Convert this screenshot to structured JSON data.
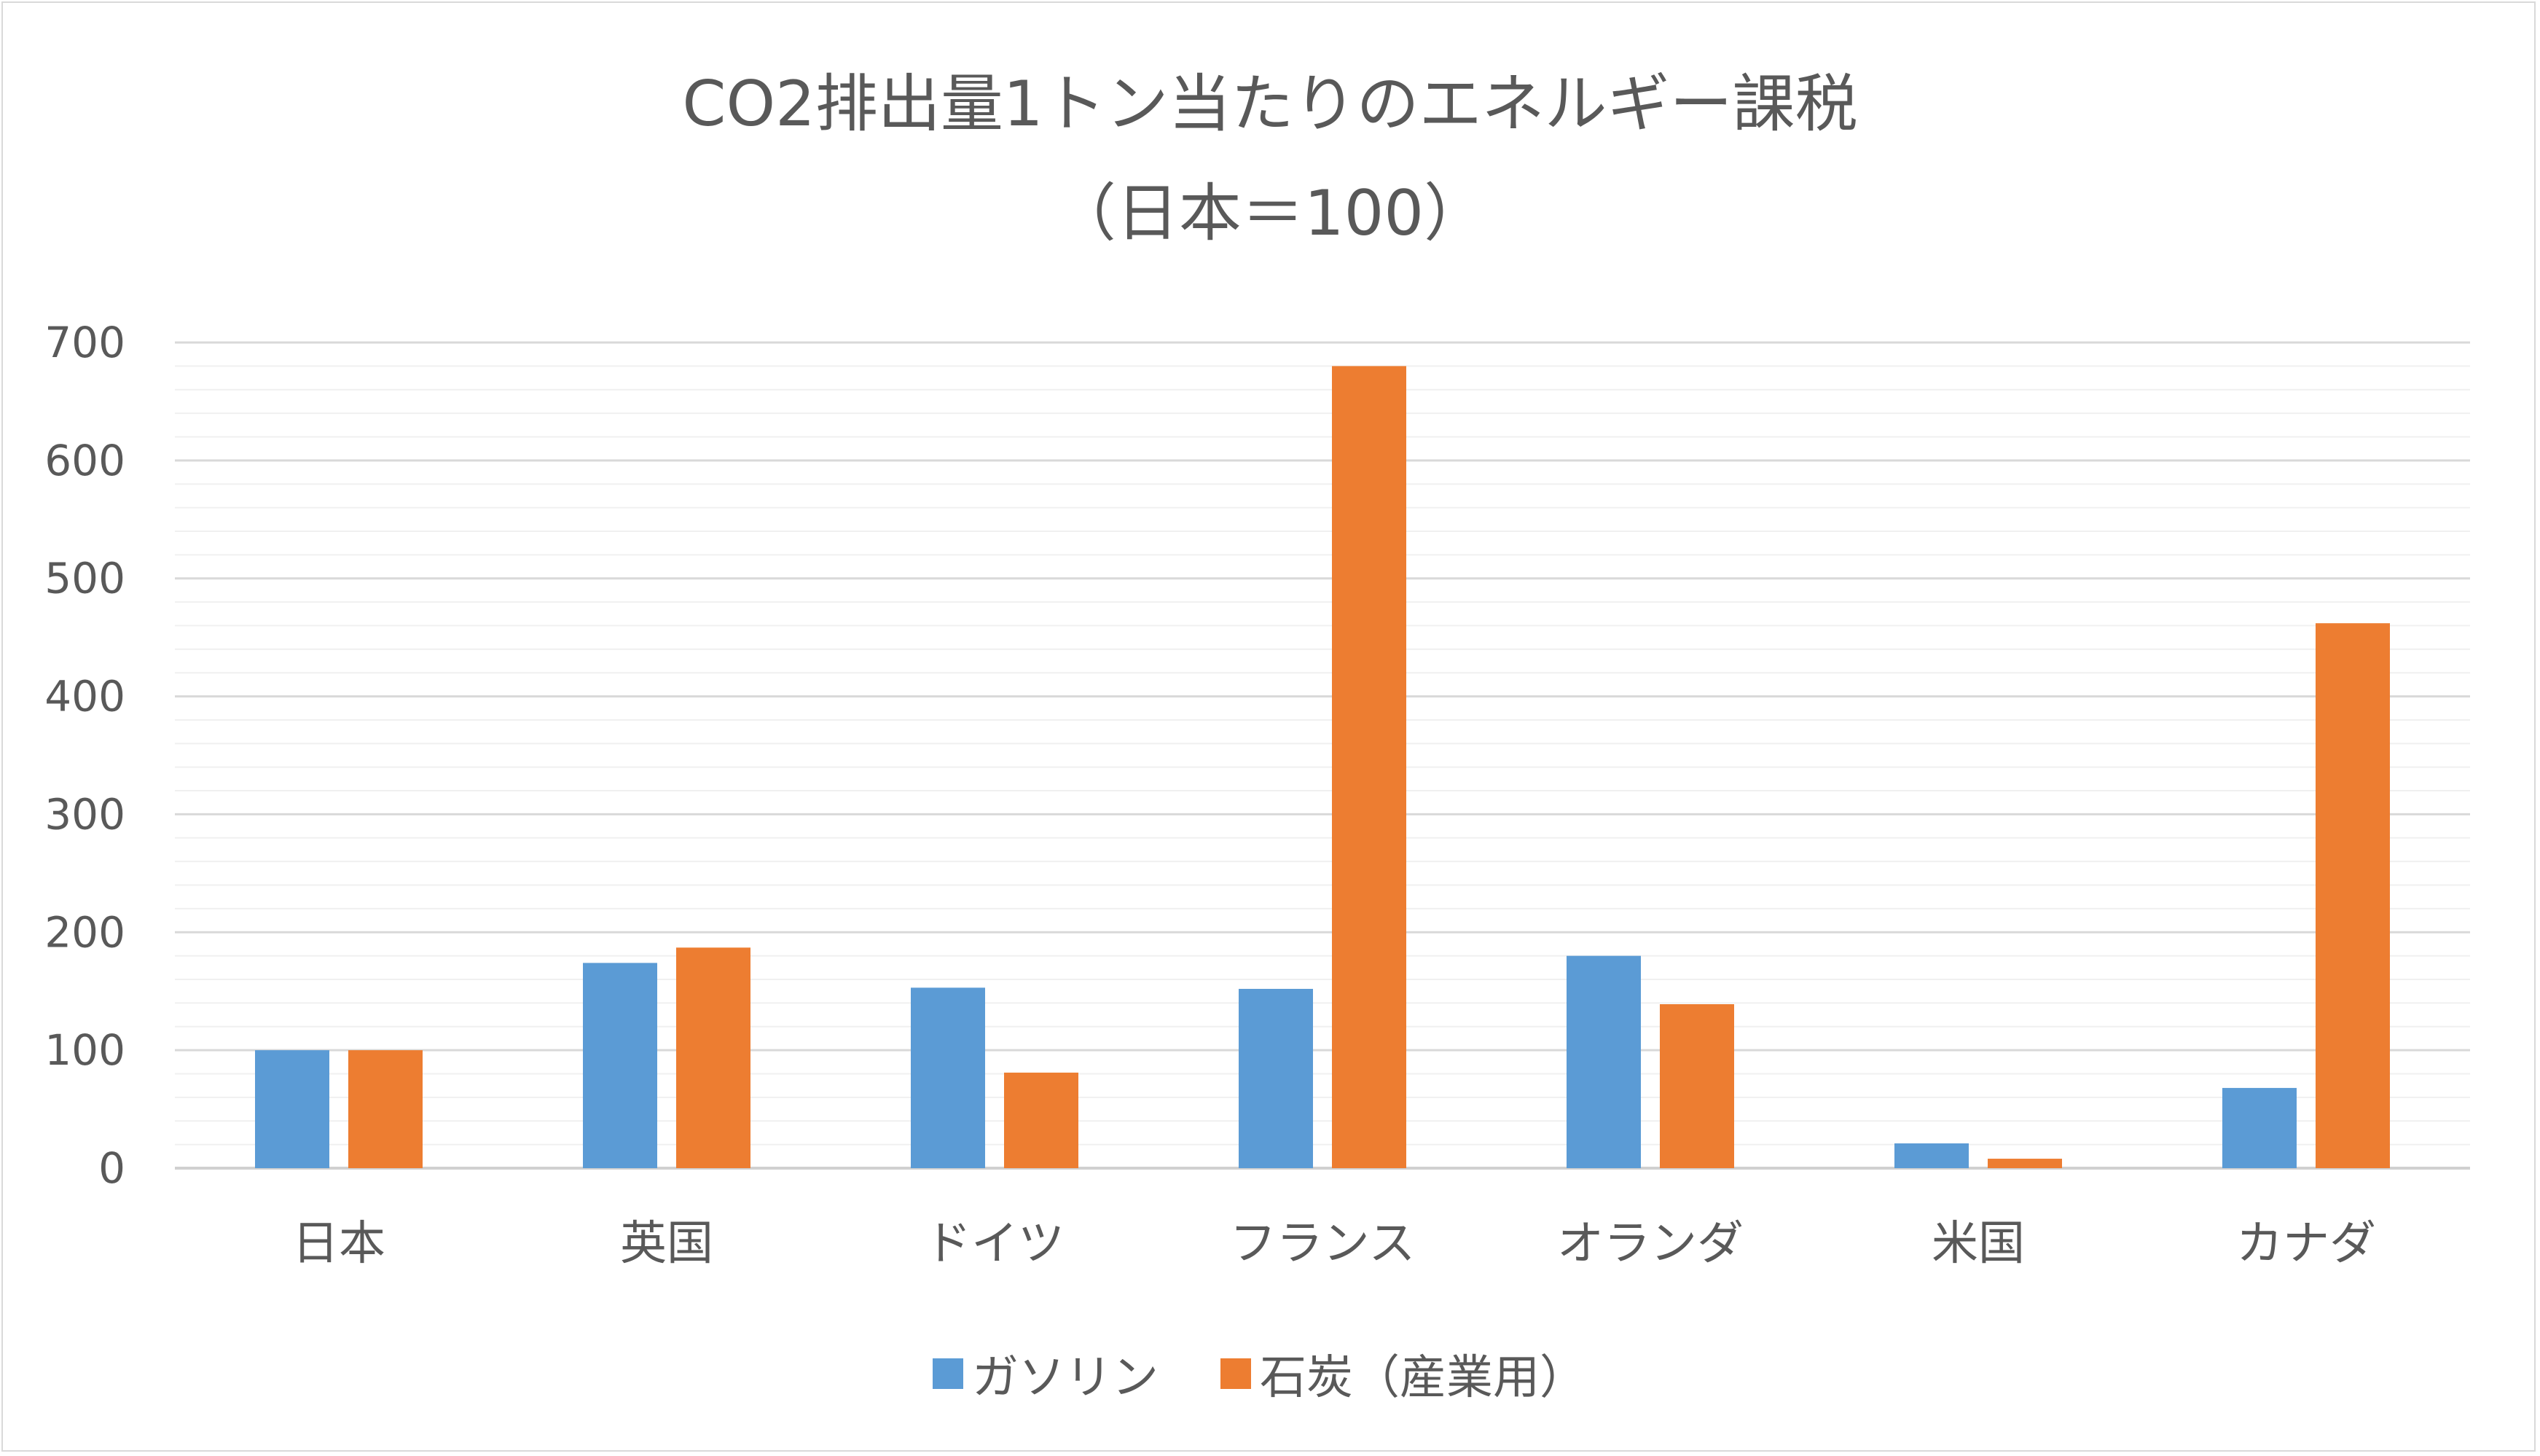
{
  "chart_data": {
    "type": "bar",
    "title": "CO2排出量1トン当たりのエネルギー課税",
    "subtitle": "（日本＝100）",
    "categories": [
      "日本",
      "英国",
      "ドイツ",
      "フランス",
      "オランダ",
      "米国",
      "カナダ"
    ],
    "series": [
      {
        "name": "ガソリン",
        "color": "#5b9bd5",
        "values": [
          100,
          174,
          153,
          152,
          180,
          21,
          68
        ]
      },
      {
        "name": "石炭（産業用）",
        "color": "#ed7d31",
        "values": [
          100,
          187,
          81,
          680,
          139,
          8,
          462
        ]
      }
    ],
    "ylim": [
      0,
      700
    ],
    "yticks": [
      0,
      100,
      200,
      300,
      400,
      500,
      600,
      700
    ],
    "gridlines": {
      "major": true,
      "minor": true,
      "minor_step": 20
    },
    "legend_position": "bottom"
  }
}
